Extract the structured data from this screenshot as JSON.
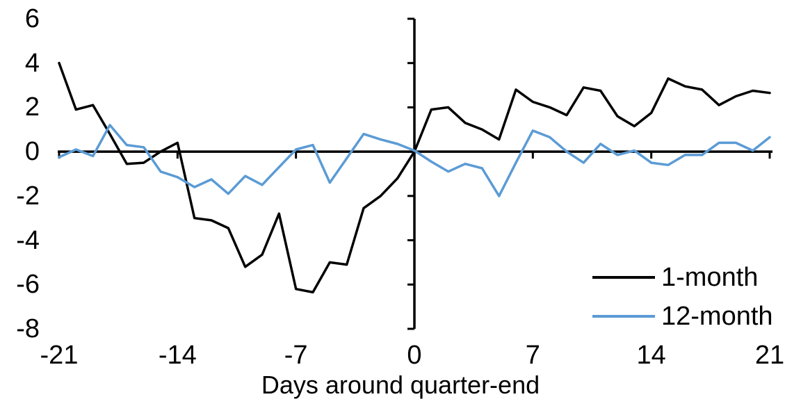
{
  "chart_data": {
    "type": "line",
    "title": "",
    "xlabel": "Days around quarter-end",
    "ylabel": "",
    "x": [
      -21,
      -20,
      -19,
      -18,
      -17,
      -16,
      -15,
      -14,
      -13,
      -12,
      -11,
      -10,
      -9,
      -8,
      -7,
      -6,
      -5,
      -4,
      -3,
      -2,
      -1,
      0,
      1,
      2,
      3,
      4,
      5,
      6,
      7,
      8,
      9,
      10,
      11,
      12,
      13,
      14,
      15,
      16,
      17,
      18,
      19,
      20,
      21
    ],
    "series": [
      {
        "name": "1-month",
        "color": "#000000",
        "values": [
          4.0,
          1.9,
          2.1,
          0.8,
          -0.55,
          -0.5,
          0.0,
          0.4,
          -3.0,
          -3.1,
          -3.45,
          -5.2,
          -4.65,
          -2.8,
          -6.2,
          -6.35,
          -5.0,
          -5.1,
          -2.55,
          -2.0,
          -1.2,
          0.0,
          1.9,
          2.0,
          1.3,
          1.0,
          0.55,
          2.8,
          2.25,
          2.0,
          1.65,
          2.9,
          2.75,
          1.6,
          1.15,
          1.75,
          3.3,
          2.95,
          2.8,
          2.1,
          2.5,
          2.75,
          2.65
        ]
      },
      {
        "name": "12-month",
        "color": "#5B9BD5",
        "values": [
          -0.25,
          0.1,
          -0.2,
          1.2,
          0.3,
          0.2,
          -0.9,
          -1.15,
          -1.6,
          -1.25,
          -1.9,
          -1.1,
          -1.5,
          -0.7,
          0.1,
          0.3,
          -1.4,
          -0.3,
          0.8,
          0.55,
          0.35,
          0.05,
          -0.45,
          -0.9,
          -0.55,
          -0.75,
          -2.0,
          -0.5,
          0.95,
          0.65,
          0.0,
          -0.5,
          0.35,
          -0.15,
          0.05,
          -0.5,
          -0.6,
          -0.15,
          -0.15,
          0.4,
          0.4,
          0.05,
          0.65
        ]
      }
    ],
    "xlim": [
      -21,
      21
    ],
    "ylim": [
      -8,
      6
    ],
    "xticks": [
      -21,
      -14,
      -7,
      0,
      7,
      14,
      21
    ],
    "yticks": [
      6,
      4,
      2,
      0,
      -2,
      -4,
      -6,
      -8
    ],
    "grid": false,
    "legend_position": "bottom-right",
    "axis_color": "#000000"
  }
}
